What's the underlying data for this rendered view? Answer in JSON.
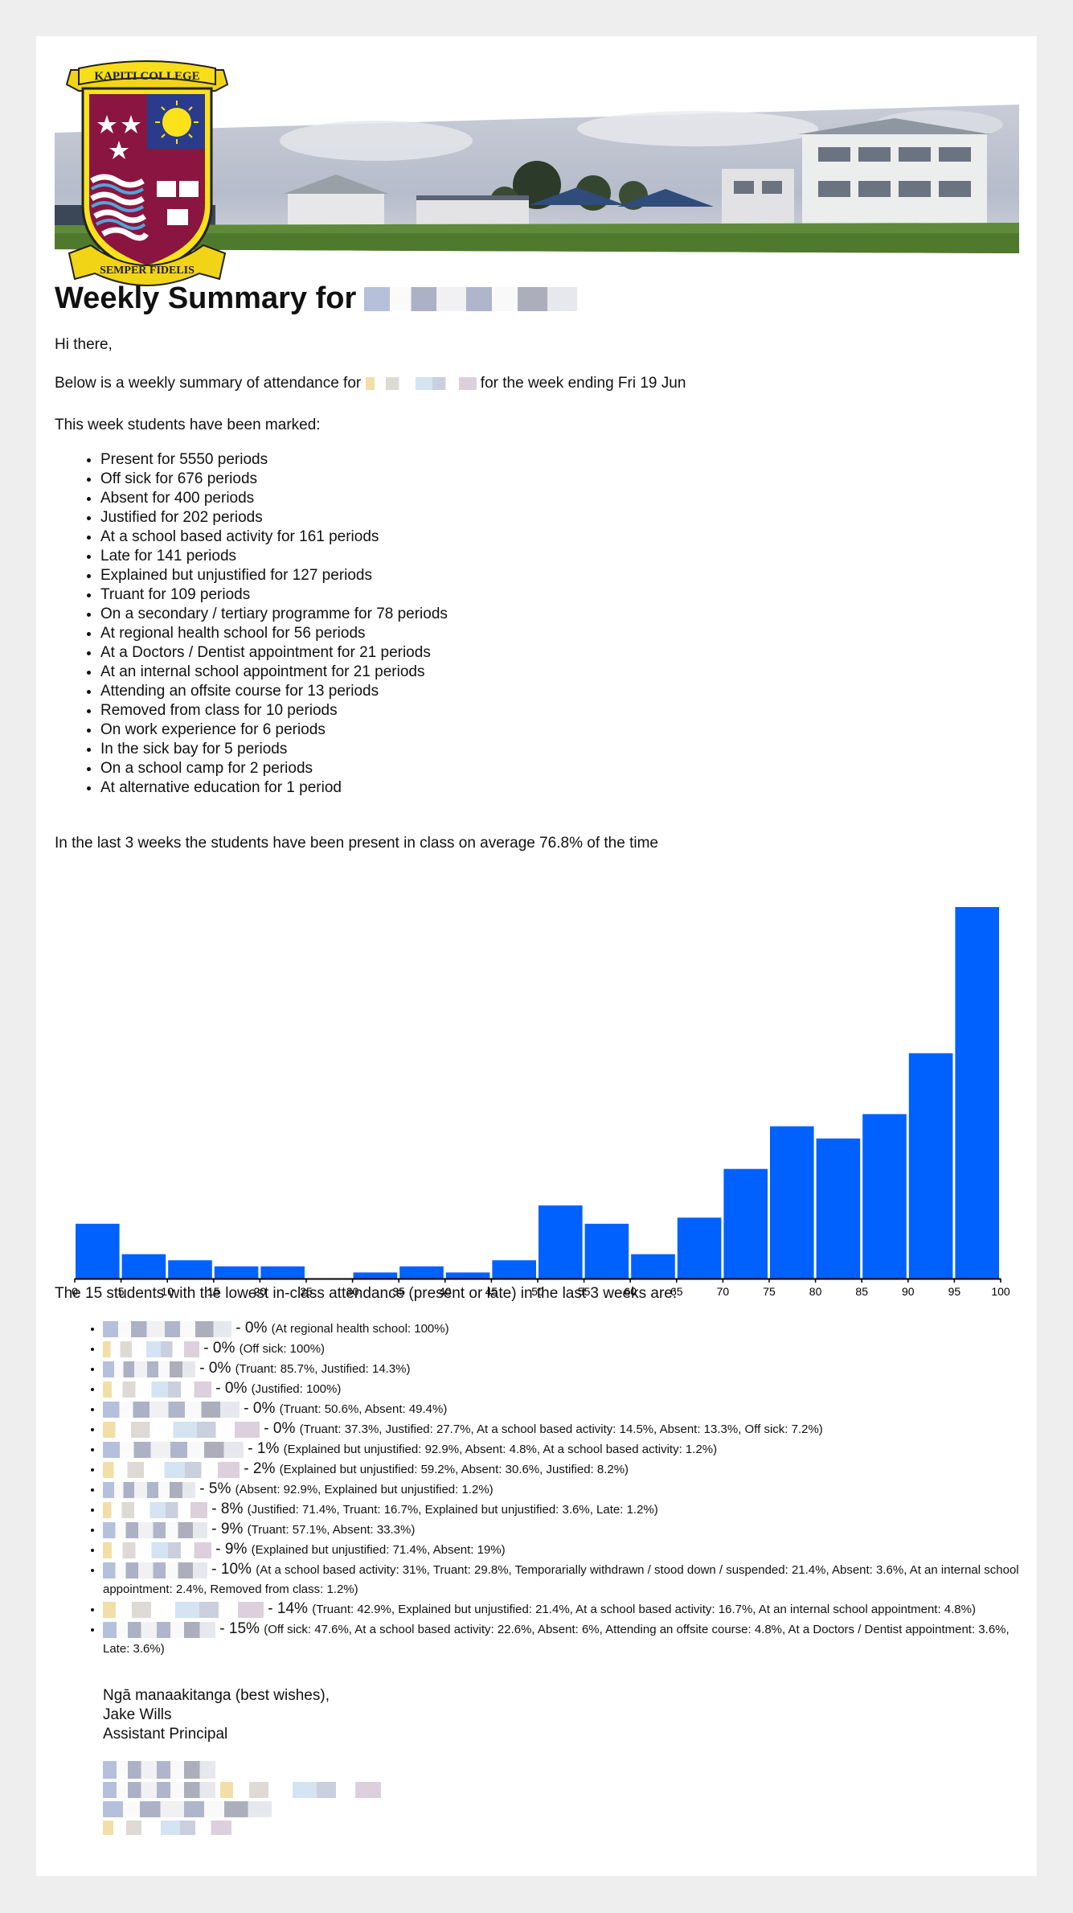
{
  "logo": {
    "top_text": "KAPITI COLLEGE",
    "bottom_text": "SEMPER FIDELIS"
  },
  "heading": {
    "prefix": "Weekly Summary for"
  },
  "greeting": "Hi there,",
  "intro": {
    "prefix": "Below is a weekly summary of attendance for",
    "suffix": "for the week ending Fri 19 Jun"
  },
  "marked_intro": "This week students have been marked:",
  "marked_items": [
    "Present for 5550 periods",
    "Off sick for 676 periods",
    "Absent for 400 periods",
    "Justified for 202 periods",
    "At a school based activity for 161 periods",
    "Late for 141 periods",
    "Explained but unjustified for 127 periods",
    "Truant for 109 periods",
    "On a secondary / tertiary programme for 78 periods",
    "At regional health school for 56 periods",
    "At a Doctors / Dentist appointment for 21 periods",
    "At an internal school appointment for 21 periods",
    "Attending an offsite course for 13 periods",
    "Removed from class for 10 periods",
    "On work experience for 6 periods",
    "In the sick bay for 5 periods",
    "On a school camp for 2 periods",
    "At alternative education for 1 period"
  ],
  "average_text": "In the last 3 weeks the students have been present in class on average 76.8% of the time",
  "chart_data": {
    "type": "bar",
    "bar_color": "#0061ff",
    "x_ticks": [
      "0",
      "5",
      "10",
      "15",
      "20",
      "25",
      "30",
      "35",
      "40",
      "45",
      "50",
      "55",
      "60",
      "65",
      "70",
      "75",
      "80",
      "85",
      "90",
      "95",
      "100"
    ],
    "bins": [
      {
        "x0": 0,
        "x1": 5,
        "value": 9
      },
      {
        "x0": 5,
        "x1": 10,
        "value": 4
      },
      {
        "x0": 10,
        "x1": 15,
        "value": 3
      },
      {
        "x0": 15,
        "x1": 20,
        "value": 2
      },
      {
        "x0": 20,
        "x1": 25,
        "value": 2
      },
      {
        "x0": 25,
        "x1": 30,
        "value": 0
      },
      {
        "x0": 30,
        "x1": 35,
        "value": 1
      },
      {
        "x0": 35,
        "x1": 40,
        "value": 2
      },
      {
        "x0": 40,
        "x1": 45,
        "value": 1
      },
      {
        "x0": 45,
        "x1": 50,
        "value": 3
      },
      {
        "x0": 50,
        "x1": 55,
        "value": 12
      },
      {
        "x0": 55,
        "x1": 60,
        "value": 9
      },
      {
        "x0": 60,
        "x1": 65,
        "value": 4
      },
      {
        "x0": 65,
        "x1": 70,
        "value": 10
      },
      {
        "x0": 70,
        "x1": 75,
        "value": 18
      },
      {
        "x0": 75,
        "x1": 80,
        "value": 25
      },
      {
        "x0": 80,
        "x1": 85,
        "value": 23
      },
      {
        "x0": 85,
        "x1": 90,
        "value": 27
      },
      {
        "x0": 90,
        "x1": 95,
        "value": 37
      },
      {
        "x0": 95,
        "x1": 100,
        "value": 61
      }
    ],
    "xlim": [
      0,
      100
    ],
    "ylim": [
      0,
      61
    ],
    "grid": false,
    "title": "",
    "xlabel": "",
    "ylabel": ""
  },
  "lowest_intro": "The 15 students with the lowest in-class attendance (present or late) in the last 3 weeks are:",
  "lowest_students": [
    {
      "pct": "- 0%",
      "detail": "(At regional health school: 100%)"
    },
    {
      "pct": "- 0%",
      "detail": "(Off sick: 100%)"
    },
    {
      "pct": "- 0%",
      "detail": "(Truant: 85.7%, Justified: 14.3%)"
    },
    {
      "pct": "- 0%",
      "detail": "(Justified: 100%)"
    },
    {
      "pct": "- 0%",
      "detail": "(Truant: 50.6%, Absent: 49.4%)"
    },
    {
      "pct": "- 0%",
      "detail": "(Truant: 37.3%, Justified: 27.7%, At a school based activity: 14.5%, Absent: 13.3%, Off sick: 7.2%)"
    },
    {
      "pct": "- 1%",
      "detail": "(Explained but unjustified: 92.9%, Absent: 4.8%, At a school based activity: 1.2%)"
    },
    {
      "pct": "- 2%",
      "detail": "(Explained but unjustified: 59.2%, Absent: 30.6%, Justified: 8.2%)"
    },
    {
      "pct": "- 5%",
      "detail": "(Absent: 92.9%, Explained but unjustified: 1.2%)"
    },
    {
      "pct": "- 8%",
      "detail": "(Justified: 71.4%, Truant: 16.7%, Explained but unjustified: 3.6%, Late: 1.2%)"
    },
    {
      "pct": "- 9%",
      "detail": "(Truant: 57.1%, Absent: 33.3%)"
    },
    {
      "pct": "- 9%",
      "detail": "(Explained but unjustified: 71.4%, Absent: 19%)"
    },
    {
      "pct": "- 10%",
      "detail": "(At a school based activity: 31%, Truant: 29.8%, Temporarially withdrawn / stood down / suspended: 21.4%, Absent: 3.6%, At an internal school appointment: 2.4%, Removed from class: 1.2%)"
    },
    {
      "pct": "- 14%",
      "detail": "(Truant: 42.9%, Explained but unjustified: 21.4%, At a school based activity: 16.7%, At an internal school appointment: 4.8%)"
    },
    {
      "pct": "- 15%",
      "detail": "(Off sick: 47.6%, At a school based activity: 22.6%, Absent: 6%, Attending an offsite course: 4.8%, At a Doctors / Dentist appointment: 3.6%, Late: 3.6%)"
    }
  ],
  "signoff": {
    "line1": "Ngā manaakitanga (best wishes),",
    "line2": "Jake Wills",
    "line3": "Assistant Principal"
  }
}
